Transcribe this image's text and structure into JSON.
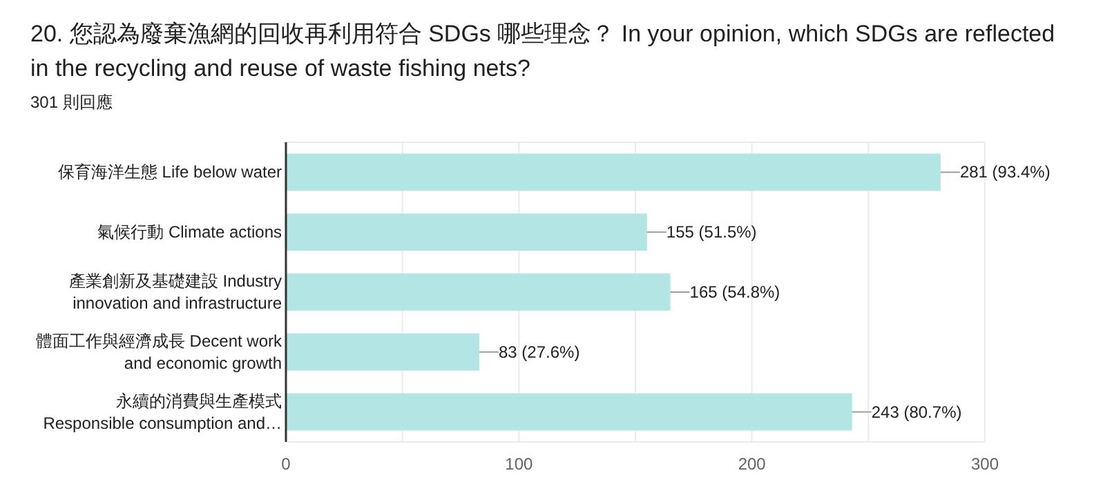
{
  "chart_data": {
    "type": "bar",
    "orientation": "horizontal",
    "title": "20. 您認為廢棄漁網的回收再利用符合 SDGs 哪些理念？ In your opinion, which SDGs are reflected in the recycling and reuse of waste fishing nets?",
    "subtitle": "301 則回應",
    "categories": [
      "保育海洋生態 Life below water",
      "氣候行動 Climate actions",
      "產業創新及基礎建設 Industry\ninnovation and infrastructure",
      "體面工作與經濟成長 Decent work\nand economic growth",
      "永續的消費與生產模式\nResponsible consumption and…"
    ],
    "values": [
      281,
      155,
      165,
      83,
      243
    ],
    "value_labels": [
      "281 (93.4%)",
      "155 (51.5%)",
      "165 (54.8%)",
      "83 (27.6%)",
      "243 (80.7%)"
    ],
    "color": "#b2e5e3",
    "xlim": [
      0,
      300
    ],
    "xticks": [
      0,
      {
        "value": 50,
        "label": null
      },
      100,
      {
        "value": 150,
        "label": null
      },
      200,
      {
        "value": 250,
        "label": null
      },
      300
    ],
    "grid": "x"
  }
}
